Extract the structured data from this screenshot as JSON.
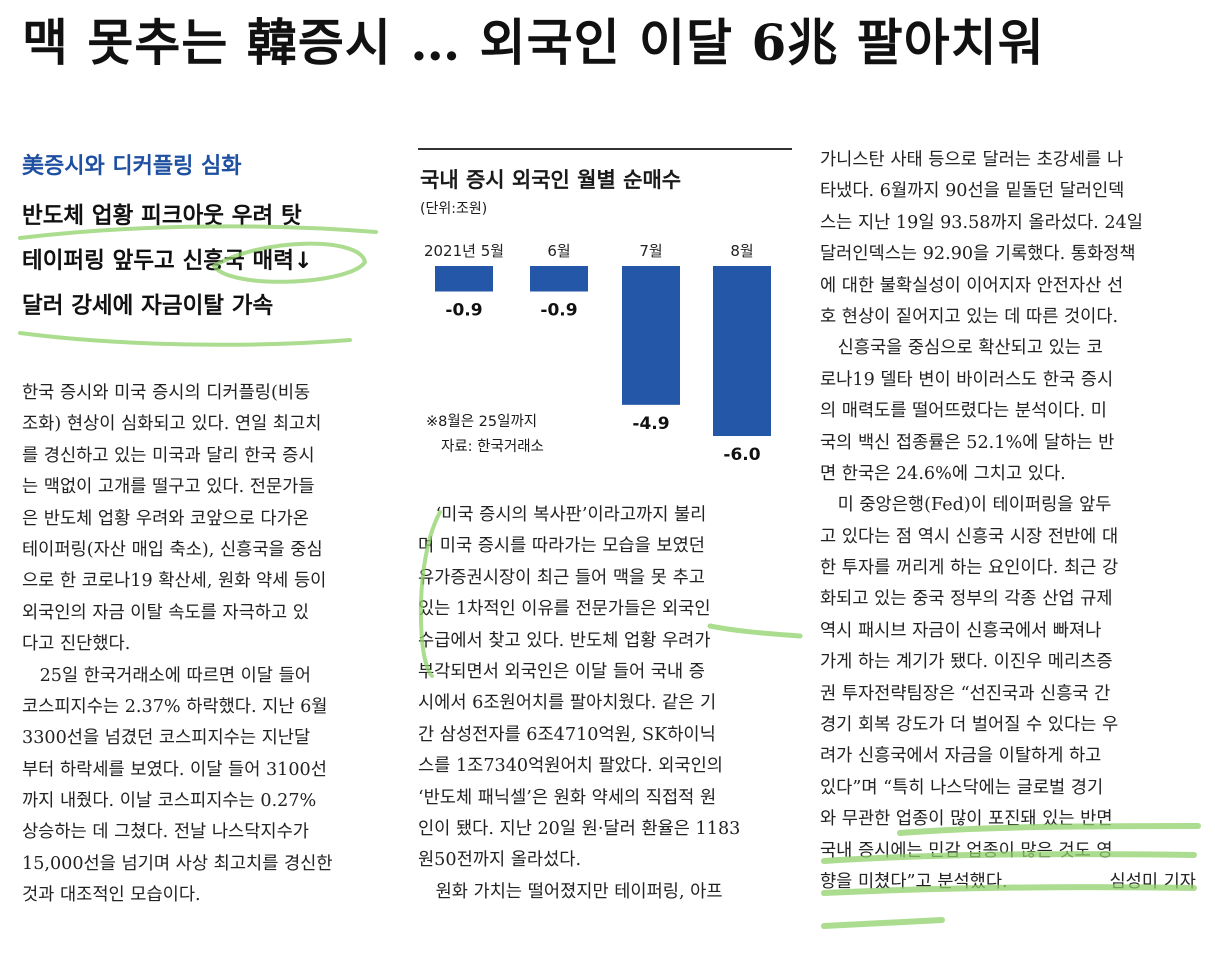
{
  "headline": "맥 못추는 韓증시 … 외국인 이달 6兆 팔아치워",
  "kicker": "美증시와 디커플링 심화",
  "subheads": [
    "반도체 업황 피크아웃 우려 탓",
    "테이퍼링 앞두고 신흥국 매력↓",
    "달러 강세에 자금이탈 가속"
  ],
  "columns": [
    [
      "한국 증시와 미국 증시의 디커플링(비동",
      "조화) 현상이 심화되고 있다. 연일 최고치",
      "를 경신하고 있는 미국과 달리 한국 증시",
      "는 맥없이 고개를 떨구고 있다. 전문가들",
      "은 반도체 업황 우려와 코앞으로 다가온",
      "테이퍼링(자산 매입 축소), 신흥국을 중심",
      "으로 한 코로나19 확산세, 원화 약세 등이",
      "외국인의 자금 이탈 속도를 자극하고 있",
      "다고 진단했다.",
      "　25일 한국거래소에 따르면 이달 들어",
      "코스피지수는 2.37% 하락했다. 지난 6월",
      "3300선을 넘겼던 코스피지수는 지난달",
      "부터 하락세를 보였다. 이달 들어 3100선",
      "까지 내줬다. 이날 코스피지수는 0.27%",
      "상승하는 데 그쳤다. 전날 나스닥지수가",
      "15,000선을 넘기며 사상 최고치를 경신한",
      "것과 대조적인 모습이다."
    ],
    [
      "　‘미국 증시의 복사판’이라고까지 불리",
      "며 미국 증시를 따라가는 모습을 보였던",
      "유가증권시장이 최근 들어 맥을 못 추고",
      "있는 1차적인 이유를 전문가들은 외국인",
      "수급에서 찾고 있다. 반도체 업황 우려가",
      "부각되면서 외국인은 이달 들어 국내 증",
      "시에서 6조원어치를 팔아치웠다. 같은 기",
      "간 삼성전자를 6조4710억원, SK하이닉",
      "스를 1조7340억원어치 팔았다. 외국인의",
      "‘반도체 패닉셀’은 원화 약세의 직접적 원",
      "인이 됐다. 지난 20일 원·달러 환율은 1183",
      "원50전까지 올라섰다.",
      "　원화 가치는 떨어졌지만 테이퍼링, 아프"
    ],
    [
      "가니스탄 사태 등으로 달러는 초강세를 나",
      "타냈다. 6월까지 90선을 밑돌던 달러인덱",
      "스는 지난 19일 93.58까지 올라섰다. 24일",
      "달러인덱스는 92.90을 기록했다. 통화정책",
      "에 대한 불확실성이 이어지자 안전자산 선",
      "호 현상이 짙어지고 있는 데 따른 것이다.",
      "　신흥국을 중심으로 확산되고 있는 코",
      "로나19 델타 변이 바이러스도 한국 증시",
      "의 매력도를 떨어뜨렸다는 분석이다. 미",
      "국의 백신 접종률은 52.1%에 달하는 반",
      "면 한국은 24.6%에 그치고 있다.",
      "　미 중앙은행(Fed)이 테이퍼링을 앞두",
      "고 있다는 점 역시 신흥국 시장 전반에 대",
      "한 투자를 꺼리게 하는 요인이다. 최근 강",
      "화되고 있는 중국 정부의 각종 산업 규제",
      "역시 패시브 자금이 신흥국에서 빠져나",
      "가게 하는 계기가 됐다. 이진우 메리츠증",
      "권 투자전략팀장은 “선진국과 신흥국 간",
      "경기 회복 강도가 더 벌어질 수 있다는 우",
      "려가 신흥국에서 자금을 이탈하게 하고",
      "있다”며 “특히 나스닥에는 글로벌 경기",
      "와 무관한 업종이 많이 포진돼 있는 반면",
      "국내 증시에는 민감 업종이 많은 것도 영",
      "향을 미쳤다”고 분석했다."
    ]
  ],
  "byline": "심성미 기자",
  "chart_data": {
    "type": "bar",
    "title": "국내 증시 외국인 월별 순매수",
    "unit": "(단위:조원)",
    "categories": [
      "2021년 5월",
      "6월",
      "7월",
      "8월"
    ],
    "values": [
      -0.9,
      -0.9,
      -4.9,
      -6.0
    ],
    "value_labels": [
      "-0.9",
      "-0.9",
      "-4.9",
      "-6.0"
    ],
    "ylim": [
      -6.0,
      0
    ],
    "bar_color": "#2457a8",
    "notes": [
      "※8월은 25일까지",
      "자료: 한국거래소"
    ]
  },
  "highlight_color": "#8fd16a"
}
